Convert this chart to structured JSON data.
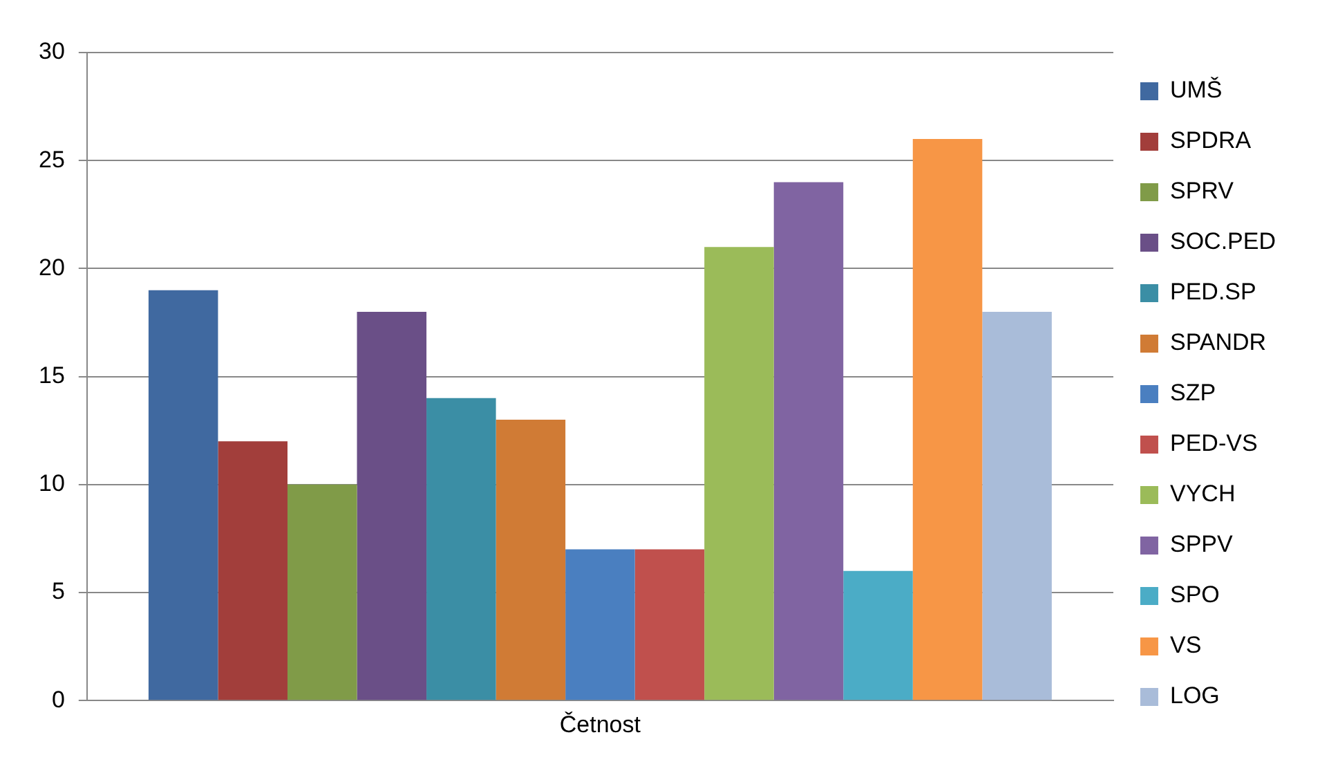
{
  "chart_data": {
    "type": "bar",
    "categories": [
      "Četnost"
    ],
    "series": [
      {
        "name": "UMŠ",
        "color": "#4069a0",
        "values": [
          19
        ]
      },
      {
        "name": "SPDRA",
        "color": "#a23e3b",
        "values": [
          12
        ]
      },
      {
        "name": "SPRV",
        "color": "#809b48",
        "values": [
          10
        ]
      },
      {
        "name": "SOC.PED",
        "color": "#6a4f87",
        "values": [
          18
        ]
      },
      {
        "name": "PED.SP",
        "color": "#3b8ea5",
        "values": [
          14
        ]
      },
      {
        "name": "SPANDR",
        "color": "#d07b35",
        "values": [
          13
        ]
      },
      {
        "name": "SZP",
        "color": "#4a7fc0",
        "values": [
          7
        ]
      },
      {
        "name": "PED-VS",
        "color": "#c0504d",
        "values": [
          7
        ]
      },
      {
        "name": "VYCH",
        "color": "#9bbb59",
        "values": [
          21
        ]
      },
      {
        "name": "SPPV",
        "color": "#8064a2",
        "values": [
          24
        ]
      },
      {
        "name": "SPO",
        "color": "#4bacc6",
        "values": [
          6
        ]
      },
      {
        "name": "VS",
        "color": "#f79646",
        "values": [
          26
        ]
      },
      {
        "name": "LOG",
        "color": "#a9bcd9",
        "values": [
          18
        ]
      }
    ],
    "ylim": [
      0,
      30
    ],
    "yticks": [
      0,
      5,
      10,
      15,
      20,
      25,
      30
    ],
    "grid": "y",
    "legend": "right"
  }
}
